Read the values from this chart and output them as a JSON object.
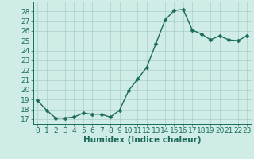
{
  "x": [
    0,
    1,
    2,
    3,
    4,
    5,
    6,
    7,
    8,
    9,
    10,
    11,
    12,
    13,
    14,
    15,
    16,
    17,
    18,
    19,
    20,
    21,
    22,
    23
  ],
  "y": [
    18.9,
    17.9,
    17.1,
    17.1,
    17.2,
    17.6,
    17.5,
    17.5,
    17.2,
    17.9,
    19.9,
    21.1,
    22.3,
    24.7,
    27.1,
    28.1,
    28.2,
    26.1,
    25.7,
    25.1,
    25.5,
    25.1,
    25.0,
    25.5
  ],
  "line_color": "#1a6b5a",
  "marker": "D",
  "marker_size": 2.5,
  "bg_color": "#d0ece6",
  "grid_color": "#a8cfc8",
  "xlabel": "Humidex (Indice chaleur)",
  "ylim": [
    16.5,
    29.0
  ],
  "xlim": [
    -0.5,
    23.5
  ],
  "yticks": [
    17,
    18,
    19,
    20,
    21,
    22,
    23,
    24,
    25,
    26,
    27,
    28
  ],
  "xticks": [
    0,
    1,
    2,
    3,
    4,
    5,
    6,
    7,
    8,
    9,
    10,
    11,
    12,
    13,
    14,
    15,
    16,
    17,
    18,
    19,
    20,
    21,
    22,
    23
  ],
  "tick_fontsize": 6.5,
  "xlabel_fontsize": 7.5,
  "linewidth": 1.0
}
